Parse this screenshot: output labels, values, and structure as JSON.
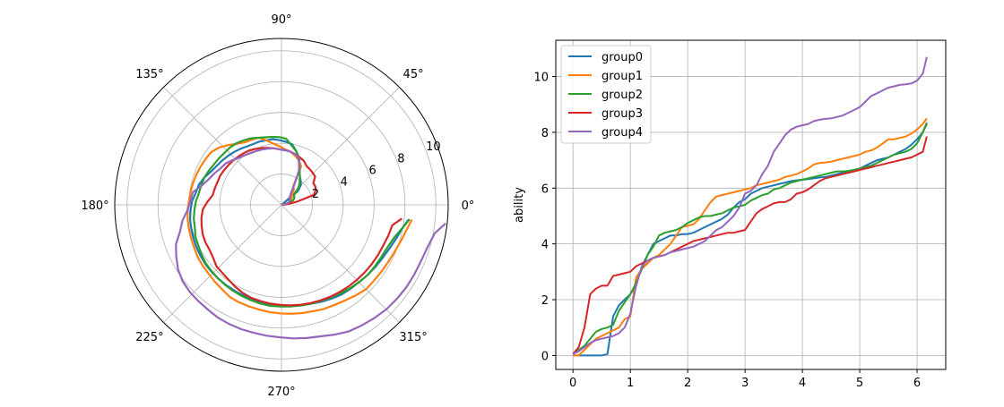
{
  "chart_data": [
    {
      "type": "line",
      "projection": "polar",
      "title": "",
      "r_ticks": [
        2,
        4,
        6,
        8,
        10
      ],
      "r_tick_labels": [
        "2",
        "4",
        "6",
        "8",
        "10"
      ],
      "r_max": 10.8,
      "theta_ticks_deg": [
        0,
        45,
        90,
        135,
        180,
        225,
        270,
        315
      ],
      "theta_tick_labels": [
        "0°",
        "45°",
        "90°",
        "135°",
        "180°",
        "225°",
        "270°",
        "315°"
      ],
      "grid": true,
      "theta_unit": "radians",
      "series": [
        {
          "color": "#1f77b4",
          "theta": [
            0.0,
            0.1,
            0.2,
            0.3,
            0.4,
            0.5,
            0.6,
            0.7,
            0.8,
            0.9,
            1.0,
            1.1,
            1.2,
            1.3,
            1.4,
            1.5,
            1.6,
            1.7,
            1.8,
            1.9,
            2.0,
            2.1,
            2.2,
            2.3,
            2.4,
            2.5,
            2.6,
            2.7,
            2.8,
            2.9,
            3.0,
            3.1,
            3.2,
            3.3,
            3.4,
            3.5,
            3.6,
            3.7,
            3.8,
            3.9,
            4.0,
            4.1,
            4.2,
            4.3,
            4.4,
            4.5,
            4.6,
            4.7,
            4.8,
            4.9,
            5.0,
            5.1,
            5.2,
            5.3,
            5.4,
            5.5,
            5.6,
            5.7,
            5.8,
            5.9,
            6.0,
            6.1,
            6.17
          ],
          "values": [
            0.0,
            0.0,
            0.0,
            0.0,
            0.0,
            0.0,
            0.05,
            1.4,
            1.8,
            2.0,
            2.2,
            2.5,
            3.2,
            3.6,
            4.0,
            4.1,
            4.2,
            4.3,
            4.3,
            4.35,
            4.35,
            4.4,
            4.5,
            4.6,
            4.7,
            4.8,
            4.9,
            5.05,
            5.3,
            5.5,
            5.6,
            5.8,
            5.9,
            6.0,
            6.05,
            6.1,
            6.15,
            6.2,
            6.25,
            6.28,
            6.3,
            6.32,
            6.35,
            6.38,
            6.4,
            6.45,
            6.5,
            6.55,
            6.6,
            6.65,
            6.7,
            6.8,
            6.9,
            7.0,
            7.05,
            7.1,
            7.2,
            7.3,
            7.4,
            7.55,
            7.75,
            8.0,
            8.3
          ]
        },
        {
          "color": "#ff7f0e",
          "theta": [
            0.0,
            0.1,
            0.2,
            0.3,
            0.4,
            0.5,
            0.6,
            0.7,
            0.8,
            0.9,
            1.0,
            1.1,
            1.2,
            1.3,
            1.4,
            1.5,
            1.6,
            1.7,
            1.8,
            1.9,
            2.0,
            2.1,
            2.2,
            2.3,
            2.4,
            2.5,
            2.6,
            2.7,
            2.8,
            2.9,
            3.0,
            3.1,
            3.2,
            3.3,
            3.4,
            3.5,
            3.6,
            3.7,
            3.8,
            3.9,
            4.0,
            4.1,
            4.2,
            4.3,
            4.4,
            4.5,
            4.6,
            4.7,
            4.8,
            4.9,
            5.0,
            5.1,
            5.2,
            5.3,
            5.4,
            5.5,
            5.6,
            5.7,
            5.8,
            5.9,
            6.0,
            6.1,
            6.17
          ],
          "values": [
            0.0,
            0.0,
            0.2,
            0.4,
            0.6,
            0.7,
            0.8,
            0.9,
            1.0,
            1.3,
            1.4,
            2.8,
            3.1,
            3.3,
            3.5,
            3.6,
            3.8,
            4.0,
            4.3,
            4.6,
            4.65,
            4.7,
            4.9,
            5.2,
            5.5,
            5.7,
            5.75,
            5.8,
            5.85,
            5.9,
            5.95,
            6.0,
            6.1,
            6.15,
            6.2,
            6.25,
            6.3,
            6.4,
            6.45,
            6.5,
            6.6,
            6.7,
            6.85,
            6.9,
            6.92,
            6.95,
            7.0,
            7.05,
            7.1,
            7.15,
            7.2,
            7.3,
            7.35,
            7.45,
            7.6,
            7.75,
            7.75,
            7.8,
            7.85,
            7.95,
            8.1,
            8.3,
            8.5
          ]
        },
        {
          "color": "#2ca02c",
          "theta": [
            0.0,
            0.1,
            0.2,
            0.3,
            0.4,
            0.5,
            0.6,
            0.7,
            0.8,
            0.9,
            1.0,
            1.1,
            1.2,
            1.3,
            1.4,
            1.5,
            1.6,
            1.7,
            1.8,
            1.9,
            2.0,
            2.1,
            2.2,
            2.3,
            2.4,
            2.5,
            2.6,
            2.7,
            2.8,
            2.9,
            3.0,
            3.1,
            3.2,
            3.3,
            3.4,
            3.5,
            3.6,
            3.7,
            3.8,
            3.9,
            4.0,
            4.1,
            4.2,
            4.3,
            4.4,
            4.5,
            4.6,
            4.7,
            4.8,
            4.9,
            5.0,
            5.1,
            5.2,
            5.3,
            5.4,
            5.5,
            5.6,
            5.7,
            5.8,
            5.9,
            6.0,
            6.1,
            6.17
          ],
          "values": [
            0.05,
            0.2,
            0.35,
            0.6,
            0.85,
            0.95,
            1.0,
            1.1,
            1.6,
            1.9,
            2.2,
            2.6,
            3.1,
            3.6,
            3.9,
            4.3,
            4.4,
            4.45,
            4.5,
            4.6,
            4.75,
            4.85,
            4.95,
            5.0,
            5.0,
            5.05,
            5.1,
            5.2,
            5.3,
            5.35,
            5.4,
            5.55,
            5.65,
            5.75,
            5.8,
            5.95,
            6.0,
            6.1,
            6.2,
            6.25,
            6.3,
            6.35,
            6.4,
            6.45,
            6.5,
            6.55,
            6.6,
            6.6,
            6.62,
            6.65,
            6.7,
            6.75,
            6.8,
            6.9,
            7.0,
            7.1,
            7.2,
            7.25,
            7.3,
            7.4,
            7.6,
            8.0,
            8.35
          ]
        },
        {
          "color": "#d62728",
          "theta": [
            0.0,
            0.1,
            0.2,
            0.3,
            0.4,
            0.5,
            0.6,
            0.7,
            0.8,
            0.9,
            1.0,
            1.1,
            1.2,
            1.3,
            1.4,
            1.5,
            1.6,
            1.7,
            1.8,
            1.9,
            2.0,
            2.1,
            2.2,
            2.3,
            2.4,
            2.5,
            2.6,
            2.7,
            2.8,
            2.9,
            3.0,
            3.1,
            3.2,
            3.3,
            3.4,
            3.5,
            3.6,
            3.7,
            3.8,
            3.9,
            4.0,
            4.1,
            4.2,
            4.3,
            4.4,
            4.5,
            4.6,
            4.7,
            4.8,
            4.9,
            5.0,
            5.1,
            5.2,
            5.3,
            5.4,
            5.5,
            5.6,
            5.7,
            5.8,
            5.9,
            6.0,
            6.1,
            6.17
          ],
          "values": [
            0.05,
            0.3,
            1.0,
            2.2,
            2.4,
            2.5,
            2.5,
            2.85,
            2.9,
            2.95,
            3.0,
            3.2,
            3.3,
            3.4,
            3.5,
            3.55,
            3.6,
            3.7,
            3.8,
            3.9,
            4.0,
            4.1,
            4.15,
            4.2,
            4.25,
            4.3,
            4.35,
            4.4,
            4.4,
            4.45,
            4.5,
            4.8,
            5.1,
            5.25,
            5.35,
            5.45,
            5.5,
            5.5,
            5.6,
            5.8,
            5.85,
            5.95,
            6.1,
            6.25,
            6.35,
            6.4,
            6.45,
            6.5,
            6.55,
            6.6,
            6.65,
            6.7,
            6.75,
            6.8,
            6.85,
            6.9,
            6.95,
            7.0,
            7.05,
            7.1,
            7.2,
            7.3,
            7.85
          ]
        },
        {
          "color": "#9467bd",
          "theta": [
            0.0,
            0.1,
            0.2,
            0.3,
            0.4,
            0.5,
            0.6,
            0.7,
            0.8,
            0.9,
            1.0,
            1.1,
            1.2,
            1.3,
            1.4,
            1.5,
            1.6,
            1.7,
            1.8,
            1.9,
            2.0,
            2.1,
            2.2,
            2.3,
            2.4,
            2.5,
            2.6,
            2.7,
            2.8,
            2.9,
            3.0,
            3.1,
            3.2,
            3.3,
            3.4,
            3.5,
            3.6,
            3.7,
            3.8,
            3.9,
            4.0,
            4.1,
            4.2,
            4.3,
            4.4,
            4.5,
            4.6,
            4.7,
            4.8,
            4.9,
            5.0,
            5.1,
            5.2,
            5.3,
            5.4,
            5.5,
            5.6,
            5.7,
            5.8,
            5.9,
            6.0,
            6.1,
            6.17
          ],
          "values": [
            0.05,
            0.15,
            0.3,
            0.45,
            0.55,
            0.6,
            0.65,
            0.7,
            0.8,
            1.0,
            1.5,
            2.5,
            3.2,
            3.4,
            3.5,
            3.55,
            3.6,
            3.7,
            3.75,
            3.8,
            3.85,
            3.9,
            4.0,
            4.1,
            4.3,
            4.5,
            4.6,
            4.8,
            5.0,
            5.3,
            5.8,
            5.9,
            6.1,
            6.5,
            6.8,
            7.3,
            7.6,
            7.9,
            8.1,
            8.2,
            8.25,
            8.3,
            8.4,
            8.45,
            8.48,
            8.5,
            8.55,
            8.6,
            8.7,
            8.8,
            8.9,
            9.1,
            9.3,
            9.4,
            9.5,
            9.6,
            9.65,
            9.7,
            9.72,
            9.75,
            9.85,
            10.1,
            10.7
          ]
        }
      ]
    },
    {
      "type": "line",
      "title": "",
      "xlabel": "",
      "ylabel": "ability",
      "xlim": [
        -0.3,
        6.5
      ],
      "ylim": [
        -0.5,
        11.3
      ],
      "xticks": [
        0,
        1,
        2,
        3,
        4,
        5,
        6
      ],
      "yticks": [
        0,
        2,
        4,
        6,
        8,
        10
      ],
      "xtick_labels": [
        "0",
        "1",
        "2",
        "3",
        "4",
        "5",
        "6"
      ],
      "ytick_labels": [
        "0",
        "2",
        "4",
        "6",
        "8",
        "10"
      ],
      "grid": true,
      "legend_position": "top-left",
      "series_ref": "same series as the polar chart",
      "legend": [
        {
          "name": "group0",
          "color": "#1f77b4"
        },
        {
          "name": "group1",
          "color": "#ff7f0e"
        },
        {
          "name": "group2",
          "color": "#2ca02c"
        },
        {
          "name": "group3",
          "color": "#d62728"
        },
        {
          "name": "group4",
          "color": "#9467bd"
        }
      ]
    }
  ]
}
